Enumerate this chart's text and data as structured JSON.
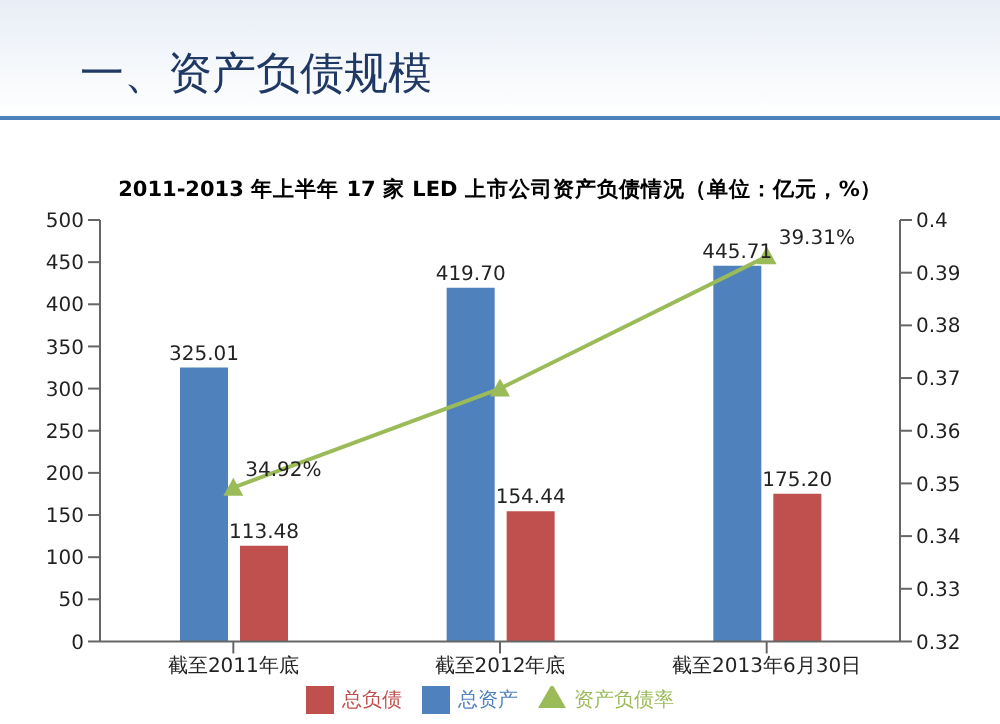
{
  "chart_data": {
    "type": "bar",
    "title": "一、资产负债规模",
    "subtitle": "2011-2013 年上半年 17 家 LED 上市公司资产负债情况（单位：亿元，%）",
    "categories": [
      "截至2011年底",
      "截至2012年底",
      "截至2013年6月30日"
    ],
    "series": [
      {
        "name": "总资产",
        "color": "#4f81bd",
        "values": [
          325.01,
          419.7,
          445.71
        ],
        "value_labels": [
          "325.01",
          "419.70",
          "445.71"
        ]
      },
      {
        "name": "总负债",
        "color": "#c0504d",
        "values": [
          113.48,
          154.44,
          175.2
        ],
        "value_labels": [
          "113.48",
          "154.44",
          "175.20"
        ]
      },
      {
        "name": "资产负债率",
        "type": "line",
        "axis": "y2",
        "color": "#9bbb59",
        "values": [
          0.3492,
          0.368,
          0.3931
        ],
        "value_labels": [
          "34.92%",
          null,
          "39.31%"
        ]
      }
    ],
    "ylim": [
      0,
      500
    ],
    "yticks": [
      0,
      50,
      100,
      150,
      200,
      250,
      300,
      350,
      400,
      450,
      500
    ],
    "y2lim": [
      0.32,
      0.4
    ],
    "y2ticks": [
      0.32,
      0.33,
      0.34,
      0.35,
      0.36,
      0.37,
      0.38,
      0.39,
      0.4
    ],
    "marker": "triangle",
    "legend": "bottom",
    "grid": false
  }
}
